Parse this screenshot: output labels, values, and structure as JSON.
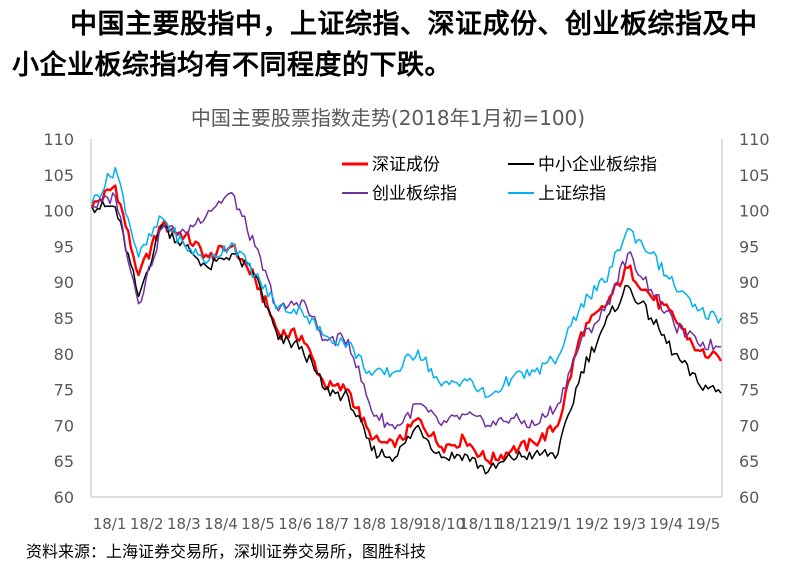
{
  "headline": {
    "line1": "中国主要股指中，上证综指、深证成份、创业板综指及中",
    "line2": "小企业板综指均有不同程度的下跌。"
  },
  "source": "资料来源：上海证券交易所，深圳证券交易所，图胜科技",
  "chart_data": {
    "type": "line",
    "title": "中国主要股票指数走势(2018年1月初=100)",
    "xlabel": "",
    "ylabel": "",
    "ylim": [
      60,
      110
    ],
    "yticks": [
      60,
      65,
      70,
      75,
      80,
      85,
      90,
      95,
      100,
      105,
      110
    ],
    "y2ticks": [
      60,
      65,
      70,
      75,
      80,
      85,
      90,
      95,
      100,
      105,
      110
    ],
    "xticks": [
      "18/1",
      "18/2",
      "18/3",
      "18/4",
      "18/5",
      "18/6",
      "18/7",
      "18/8",
      "18/9",
      "18/10",
      "18/11",
      "18/12",
      "19/1",
      "19/2",
      "19/3",
      "19/4",
      "19/5"
    ],
    "grid": false,
    "legend": "top-right",
    "series": [
      {
        "name": "深证成份",
        "color": "#ff0000",
        "values": [
          100.5,
          103.5,
          91,
          98,
          96.5,
          93.5,
          95,
          90.5,
          83,
          82.5,
          75.5,
          75,
          68,
          67,
          71,
          67,
          68,
          65,
          66.5,
          67.5,
          70,
          83,
          86.5,
          92,
          88,
          85,
          80.5,
          79
        ]
      },
      {
        "name": "中小企业板综指",
        "color": "#000000",
        "values": [
          100.5,
          100.5,
          88,
          98,
          95,
          92,
          94,
          91,
          82,
          81,
          75,
          74,
          66.5,
          65.5,
          70,
          65.5,
          66,
          63.5,
          65.5,
          66,
          66,
          77.5,
          84,
          89.5,
          85,
          80,
          76,
          74.5
        ]
      },
      {
        "name": "创业板综指",
        "color": "#7030a0",
        "values": [
          100.5,
          102,
          87,
          97.5,
          97,
          100,
          102.5,
          95,
          86,
          87.5,
          82,
          82,
          72,
          69.5,
          73,
          70,
          71.5,
          70,
          71,
          70,
          73,
          82,
          86,
          94,
          89,
          84,
          81.5,
          81
        ]
      },
      {
        "name": "上证综指",
        "color": "#00b0f0",
        "values": [
          101,
          106,
          93.5,
          99,
          95,
          93,
          95.5,
          91,
          86.5,
          86,
          82.5,
          81.5,
          77,
          77.5,
          80.5,
          75.5,
          76.5,
          74,
          76.5,
          77.5,
          79.5,
          87,
          90,
          97.5,
          94,
          89.5,
          86,
          85
        ]
      }
    ]
  }
}
